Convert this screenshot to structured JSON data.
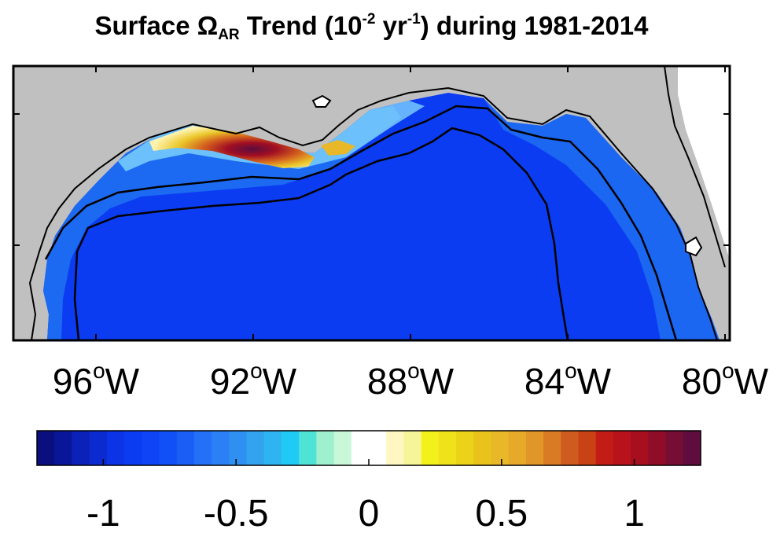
{
  "title": {
    "prefix": "Surface Ω",
    "subscript": "AR",
    "middle": " Trend (10",
    "sup1": "-2",
    "unit_mid": " yr",
    "sup2": "-1",
    "suffix": ") during 1981-2014"
  },
  "map": {
    "region": "Gulf of Mexico",
    "land_color": "#c0c0c0",
    "ocean_base_color": "#0b3cf2",
    "shelf_color": "#1f6ff2",
    "high_positive_color": "#5a0d3f",
    "contour_color": "#000000",
    "longitude_labels": [
      {
        "value": "96",
        "unit": "o",
        "hemisphere": "W"
      },
      {
        "value": "92",
        "unit": "o",
        "hemisphere": "W"
      },
      {
        "value": "88",
        "unit": "o",
        "hemisphere": "W"
      },
      {
        "value": "84",
        "unit": "o",
        "hemisphere": "W"
      },
      {
        "value": "80",
        "unit": "o",
        "hemisphere": "W"
      }
    ]
  },
  "colorbar": {
    "range": [
      -1.25,
      1.25
    ],
    "colors": [
      "#0a0e7f",
      "#0a1698",
      "#0b21b8",
      "#0b2ad0",
      "#0c34e6",
      "#0c3cf2",
      "#0e44f6",
      "#1150f6",
      "#1a5ef6",
      "#2470f6",
      "#2a80f4",
      "#2f90f2",
      "#33a3f0",
      "#2fb4f2",
      "#1fcaf5",
      "#4fe3d6",
      "#9ef0cf",
      "#c9f8d8",
      "#ffffff",
      "#ffffff",
      "#fff6c2",
      "#f6f59a",
      "#f2f21a",
      "#efe21a",
      "#edd21a",
      "#e9c31c",
      "#e8b828",
      "#e6a92a",
      "#e09628",
      "#d97a24",
      "#cf5c1e",
      "#c84216",
      "#c31b16",
      "#b8121a",
      "#a80f1e",
      "#8f0d28",
      "#760d34",
      "#5e0d3e"
    ],
    "ticks": [
      {
        "value": -1,
        "label": "-1"
      },
      {
        "value": -0.5,
        "label": "-0.5"
      },
      {
        "value": 0,
        "label": "0"
      },
      {
        "value": 0.5,
        "label": "0.5"
      },
      {
        "value": 1,
        "label": "1"
      }
    ]
  }
}
